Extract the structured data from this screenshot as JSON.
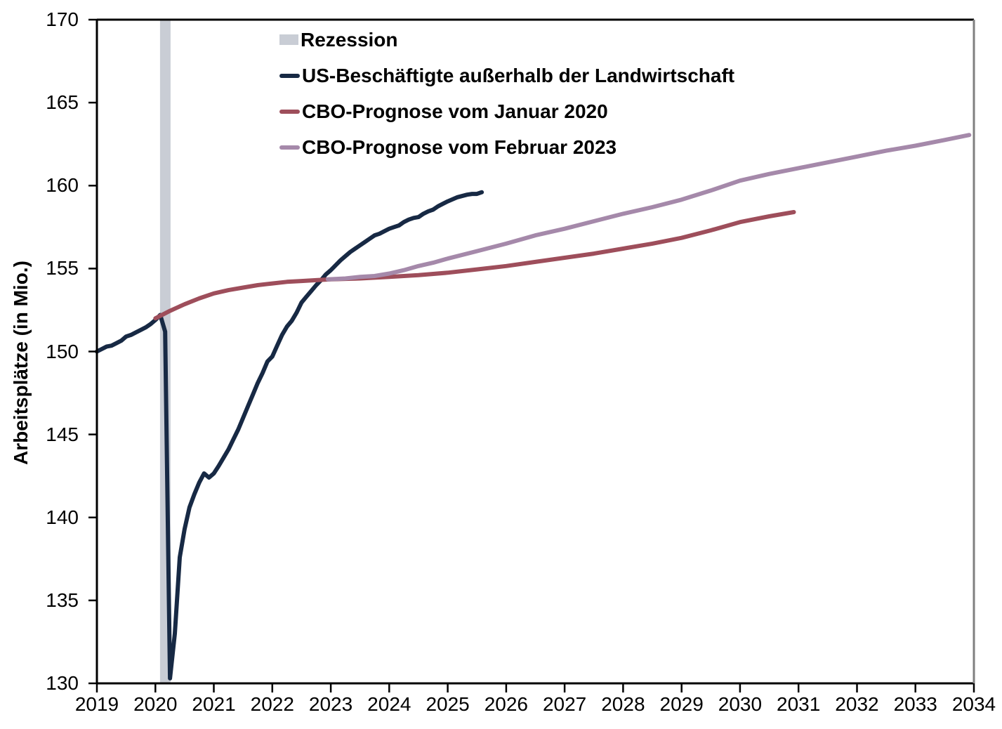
{
  "chart_data": {
    "type": "line",
    "title": "",
    "xlabel": "",
    "ylabel": "Arbeitsplätze (in Mio.)",
    "xlim": [
      2019,
      2034
    ],
    "ylim": [
      130,
      170
    ],
    "xticks": [
      2019,
      2020,
      2021,
      2022,
      2023,
      2024,
      2025,
      2026,
      2027,
      2028,
      2029,
      2030,
      2031,
      2032,
      2033,
      2034
    ],
    "yticks": [
      130,
      135,
      140,
      145,
      150,
      155,
      160,
      165,
      170
    ],
    "grid": false,
    "legend_position": "inside-top-left",
    "spine_colors": {
      "left": "#000000",
      "bottom": "#000000",
      "top": "#000000",
      "right": "#7f7f7f"
    },
    "recession_band": {
      "label": "Rezession",
      "x_start": 2020.08,
      "x_end": 2020.26,
      "color": "#c9cdd5"
    },
    "series": [
      {
        "id": "us-beschaeftigte",
        "name": "US-Beschäftigte außerhalb der Landwirtschaft",
        "color": "#172944",
        "points": [
          [
            2019.0,
            150.0
          ],
          [
            2019.083,
            150.15
          ],
          [
            2019.167,
            150.3
          ],
          [
            2019.25,
            150.35
          ],
          [
            2019.333,
            150.5
          ],
          [
            2019.417,
            150.65
          ],
          [
            2019.5,
            150.9
          ],
          [
            2019.583,
            151.0
          ],
          [
            2019.667,
            151.15
          ],
          [
            2019.75,
            151.3
          ],
          [
            2019.833,
            151.45
          ],
          [
            2019.917,
            151.65
          ],
          [
            2020.0,
            151.9
          ],
          [
            2020.083,
            152.2
          ],
          [
            2020.167,
            151.2
          ],
          [
            2020.25,
            130.3
          ],
          [
            2020.333,
            133.0
          ],
          [
            2020.417,
            137.6
          ],
          [
            2020.5,
            139.3
          ],
          [
            2020.583,
            140.6
          ],
          [
            2020.667,
            141.4
          ],
          [
            2020.75,
            142.1
          ],
          [
            2020.833,
            142.65
          ],
          [
            2020.917,
            142.4
          ],
          [
            2021.0,
            142.65
          ],
          [
            2021.083,
            143.1
          ],
          [
            2021.167,
            143.6
          ],
          [
            2021.25,
            144.1
          ],
          [
            2021.333,
            144.7
          ],
          [
            2021.417,
            145.3
          ],
          [
            2021.5,
            146.0
          ],
          [
            2021.583,
            146.7
          ],
          [
            2021.667,
            147.4
          ],
          [
            2021.75,
            148.1
          ],
          [
            2021.833,
            148.7
          ],
          [
            2021.917,
            149.4
          ],
          [
            2022.0,
            149.7
          ],
          [
            2022.083,
            150.35
          ],
          [
            2022.167,
            151.0
          ],
          [
            2022.25,
            151.5
          ],
          [
            2022.333,
            151.85
          ],
          [
            2022.417,
            152.35
          ],
          [
            2022.5,
            152.95
          ],
          [
            2022.583,
            153.3
          ],
          [
            2022.667,
            153.65
          ],
          [
            2022.75,
            154.0
          ],
          [
            2022.833,
            154.3
          ],
          [
            2022.917,
            154.65
          ],
          [
            2023.0,
            154.9
          ],
          [
            2023.083,
            155.2
          ],
          [
            2023.167,
            155.5
          ],
          [
            2023.25,
            155.75
          ],
          [
            2023.333,
            156.0
          ],
          [
            2023.417,
            156.2
          ],
          [
            2023.5,
            156.4
          ],
          [
            2023.583,
            156.6
          ],
          [
            2023.667,
            156.8
          ],
          [
            2023.75,
            157.0
          ],
          [
            2023.833,
            157.1
          ],
          [
            2023.917,
            157.25
          ],
          [
            2024.0,
            157.4
          ],
          [
            2024.083,
            157.5
          ],
          [
            2024.167,
            157.6
          ],
          [
            2024.25,
            157.8
          ],
          [
            2024.333,
            157.95
          ],
          [
            2024.417,
            158.05
          ],
          [
            2024.5,
            158.1
          ],
          [
            2024.583,
            158.3
          ],
          [
            2024.667,
            158.45
          ],
          [
            2024.75,
            158.55
          ],
          [
            2024.833,
            158.75
          ],
          [
            2024.917,
            158.9
          ],
          [
            2025.0,
            159.05
          ],
          [
            2025.167,
            159.3
          ],
          [
            2025.333,
            159.45
          ],
          [
            2025.417,
            159.5
          ],
          [
            2025.5,
            159.5
          ],
          [
            2025.583,
            159.6
          ]
        ]
      },
      {
        "id": "cbo-prognose-januar-2020",
        "name": "CBO-Prognose vom Januar 2020",
        "color": "#9e4e5b",
        "points": [
          [
            2020.0,
            152.0
          ],
          [
            2020.25,
            152.45
          ],
          [
            2020.5,
            152.85
          ],
          [
            2020.75,
            153.2
          ],
          [
            2021.0,
            153.5
          ],
          [
            2021.25,
            153.7
          ],
          [
            2021.5,
            153.85
          ],
          [
            2021.75,
            154.0
          ],
          [
            2022.0,
            154.1
          ],
          [
            2022.25,
            154.2
          ],
          [
            2022.5,
            154.25
          ],
          [
            2022.75,
            154.3
          ],
          [
            2023.0,
            154.35
          ],
          [
            2023.5,
            154.4
          ],
          [
            2024.0,
            154.5
          ],
          [
            2024.5,
            154.6
          ],
          [
            2025.0,
            154.75
          ],
          [
            2025.5,
            154.95
          ],
          [
            2026.0,
            155.15
          ],
          [
            2026.5,
            155.4
          ],
          [
            2027.0,
            155.65
          ],
          [
            2027.5,
            155.9
          ],
          [
            2028.0,
            156.2
          ],
          [
            2028.5,
            156.5
          ],
          [
            2029.0,
            156.85
          ],
          [
            2029.5,
            157.3
          ],
          [
            2030.0,
            157.8
          ],
          [
            2030.5,
            158.15
          ],
          [
            2030.92,
            158.4
          ]
        ]
      },
      {
        "id": "cbo-prognose-februar-2023",
        "name": "CBO-Prognose vom Februar 2023",
        "color": "#a589aa",
        "points": [
          [
            2022.95,
            154.35
          ],
          [
            2023.25,
            154.4
          ],
          [
            2023.5,
            154.5
          ],
          [
            2023.75,
            154.55
          ],
          [
            2024.0,
            154.7
          ],
          [
            2024.25,
            154.9
          ],
          [
            2024.5,
            155.15
          ],
          [
            2024.75,
            155.35
          ],
          [
            2025.0,
            155.6
          ],
          [
            2025.5,
            156.05
          ],
          [
            2026.0,
            156.5
          ],
          [
            2026.5,
            157.0
          ],
          [
            2027.0,
            157.4
          ],
          [
            2027.5,
            157.85
          ],
          [
            2028.0,
            158.3
          ],
          [
            2028.5,
            158.7
          ],
          [
            2029.0,
            159.15
          ],
          [
            2029.5,
            159.7
          ],
          [
            2030.0,
            160.3
          ],
          [
            2030.5,
            160.7
          ],
          [
            2031.0,
            161.05
          ],
          [
            2031.5,
            161.4
          ],
          [
            2032.0,
            161.75
          ],
          [
            2032.5,
            162.1
          ],
          [
            2033.0,
            162.4
          ],
          [
            2033.5,
            162.75
          ],
          [
            2033.92,
            163.05
          ]
        ]
      }
    ]
  }
}
